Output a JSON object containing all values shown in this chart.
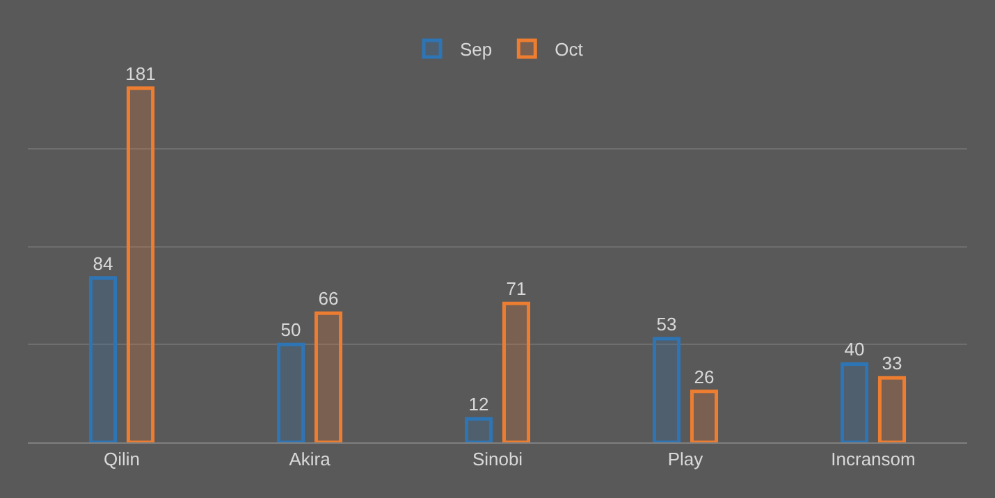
{
  "chart_data": {
    "type": "bar",
    "categories": [
      "Qilin",
      "Akira",
      "Sinobi",
      "Play",
      "Incransom"
    ],
    "series": [
      {
        "name": "Sep",
        "color": "#2e75b6",
        "values": [
          84,
          50,
          12,
          53,
          40
        ]
      },
      {
        "name": "Oct",
        "color": "#ed7d31",
        "values": [
          181,
          66,
          71,
          26,
          33
        ]
      }
    ],
    "grid": "y",
    "legend": "top",
    "data_labels": true,
    "tick_labels": "x"
  }
}
